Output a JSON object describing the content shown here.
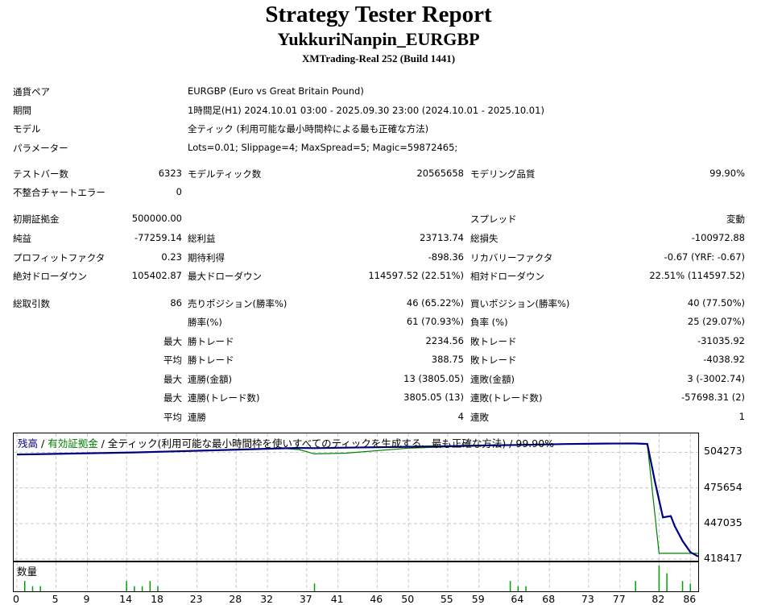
{
  "header": {
    "title": "Strategy Tester Report",
    "subtitle": "YukkuriNanpin_EURGBP",
    "server": "XMTrading-Real 252 (Build 1441)"
  },
  "settings": [
    {
      "label": "通貨ペア",
      "value": "EURGBP (Euro vs Great Britain Pound)"
    },
    {
      "label": "期間",
      "value": "1時間足(H1) 2024.10.01 03:00 - 2025.09.30 23:00 (2024.10.01 - 2025.10.01)"
    },
    {
      "label": "モデル",
      "value": "全ティック (利用可能な最小時間枠による最も正確な方法)"
    },
    {
      "label": "パラメーター",
      "value": "Lots=0.01; Slippage=4; MaxSpread=5; Magic=59872465;"
    }
  ],
  "stats": {
    "bars_label": "テストバー数",
    "bars": "6323",
    "ticks_label": "モデルティック数",
    "ticks": "20565658",
    "quality_label": "モデリング品質",
    "quality": "99.90%",
    "errors_label": "不整合チャートエラー",
    "errors": "0",
    "deposit_label": "初期証拠金",
    "deposit": "500000.00",
    "spread_label": "スプレッド",
    "spread": "変動",
    "net_label": "純益",
    "net": "-77259.14",
    "gross_profit_label": "総利益",
    "gross_profit": "23713.74",
    "gross_loss_label": "総損失",
    "gross_loss": "-100972.88",
    "pf_label": "プロフィットファクタ",
    "pf": "0.23",
    "expected_label": "期待利得",
    "expected": "-898.36",
    "recovery_label": "リカバリーファクタ",
    "recovery": "-0.67 (YRF: -0.67)",
    "abs_dd_label": "絶対ドローダウン",
    "abs_dd": "105402.87",
    "max_dd_label": "最大ドローダウン",
    "max_dd": "114597.52 (22.51%)",
    "rel_dd_label": "相対ドローダウン",
    "rel_dd": "22.51% (114597.52)",
    "trades_label": "総取引数",
    "trades": "86",
    "short_label": "売りポジション(勝率%)",
    "short": "46 (65.22%)",
    "long_label": "買いポジション(勝率%)",
    "long": "40 (77.50%)",
    "win_rate_label": "勝率(%)",
    "win_rate": "61 (70.93%)",
    "loss_rate_label": "負率 (%)",
    "loss_rate": "25 (29.07%)",
    "max_prefix": "最大",
    "avg_prefix": "平均",
    "largest_win_label": "勝トレード",
    "largest_win": "2234.56",
    "largest_loss_label": "敗トレード",
    "largest_loss": "-31035.92",
    "avg_win_label": "勝トレード",
    "avg_win": "388.75",
    "avg_loss_label": "敗トレード",
    "avg_loss": "-4038.92",
    "max_cons_wins_label": "連勝(金額)",
    "max_cons_wins": "13 (3805.05)",
    "max_cons_losses_label": "連敗(金額)",
    "max_cons_losses": "3 (-3002.74)",
    "max_cons_profit_label": "連勝(トレード数)",
    "max_cons_profit": "3805.05 (13)",
    "max_cons_loss_label": "連敗(トレード数)",
    "max_cons_loss": "-57698.31 (2)",
    "avg_cons_wins_label": "連勝",
    "avg_cons_wins": "4",
    "avg_cons_losses_label": "連敗",
    "avg_cons_losses": "1"
  },
  "chart_legend": {
    "balance": "残高",
    "sep1": " / ",
    "equity": "有効証拠金",
    "rest": " / 全ティック(利用可能な最小時間枠を使いすべてのティックを生成する、最も正確な方法) / 99.90%"
  },
  "colors": {
    "balance": "#00007f",
    "equity": "#008000",
    "volume": "#00a000"
  },
  "volume_label": "数量",
  "chart_data": {
    "type": "line",
    "y_ticks": [
      "504273",
      "475654",
      "447035",
      "418417"
    ],
    "ylim": [
      418417,
      513000
    ],
    "x_ticks": [
      "0",
      "5",
      "9",
      "14",
      "18",
      "23",
      "28",
      "32",
      "37",
      "41",
      "46",
      "50",
      "55",
      "59",
      "64",
      "68",
      "73",
      "77",
      "82",
      "86"
    ],
    "xlim": [
      0,
      87
    ],
    "series": [
      {
        "name": "残高",
        "x": [
          0,
          2,
          5,
          10,
          15,
          20,
          25,
          30,
          34,
          36,
          38,
          42,
          50,
          55,
          60,
          65,
          70,
          75,
          79,
          80.5,
          81.5,
          82.5,
          83.5,
          84,
          85,
          86,
          87
        ],
        "values": [
          502500,
          502700,
          503000,
          503600,
          504200,
          505000,
          505900,
          506800,
          507500,
          507800,
          507600,
          508000,
          508700,
          509200,
          509800,
          510300,
          510900,
          511300,
          511400,
          511000,
          480000,
          452000,
          453000,
          445000,
          433000,
          424000,
          420500
        ]
      },
      {
        "name": "有効証拠金",
        "x": [
          0,
          10,
          20,
          30,
          34,
          36,
          38,
          42,
          50,
          60,
          70,
          79,
          80.5,
          81.2,
          82,
          84,
          87
        ],
        "values": [
          502400,
          503500,
          504900,
          506700,
          507400,
          506500,
          503000,
          503600,
          507600,
          509700,
          510900,
          511400,
          511000,
          470000,
          423000,
          423000,
          423000
        ]
      }
    ],
    "volume": {
      "x": [
        1,
        2,
        3,
        14,
        15,
        16,
        17,
        18,
        38,
        63,
        64,
        65,
        79,
        82,
        83,
        85,
        86
      ],
      "values": [
        0.4,
        0.2,
        0.2,
        0.4,
        0.2,
        0.2,
        0.4,
        0.2,
        0.3,
        0.4,
        0.2,
        0.2,
        0.4,
        1.0,
        0.7,
        0.4,
        0.3
      ]
    }
  }
}
